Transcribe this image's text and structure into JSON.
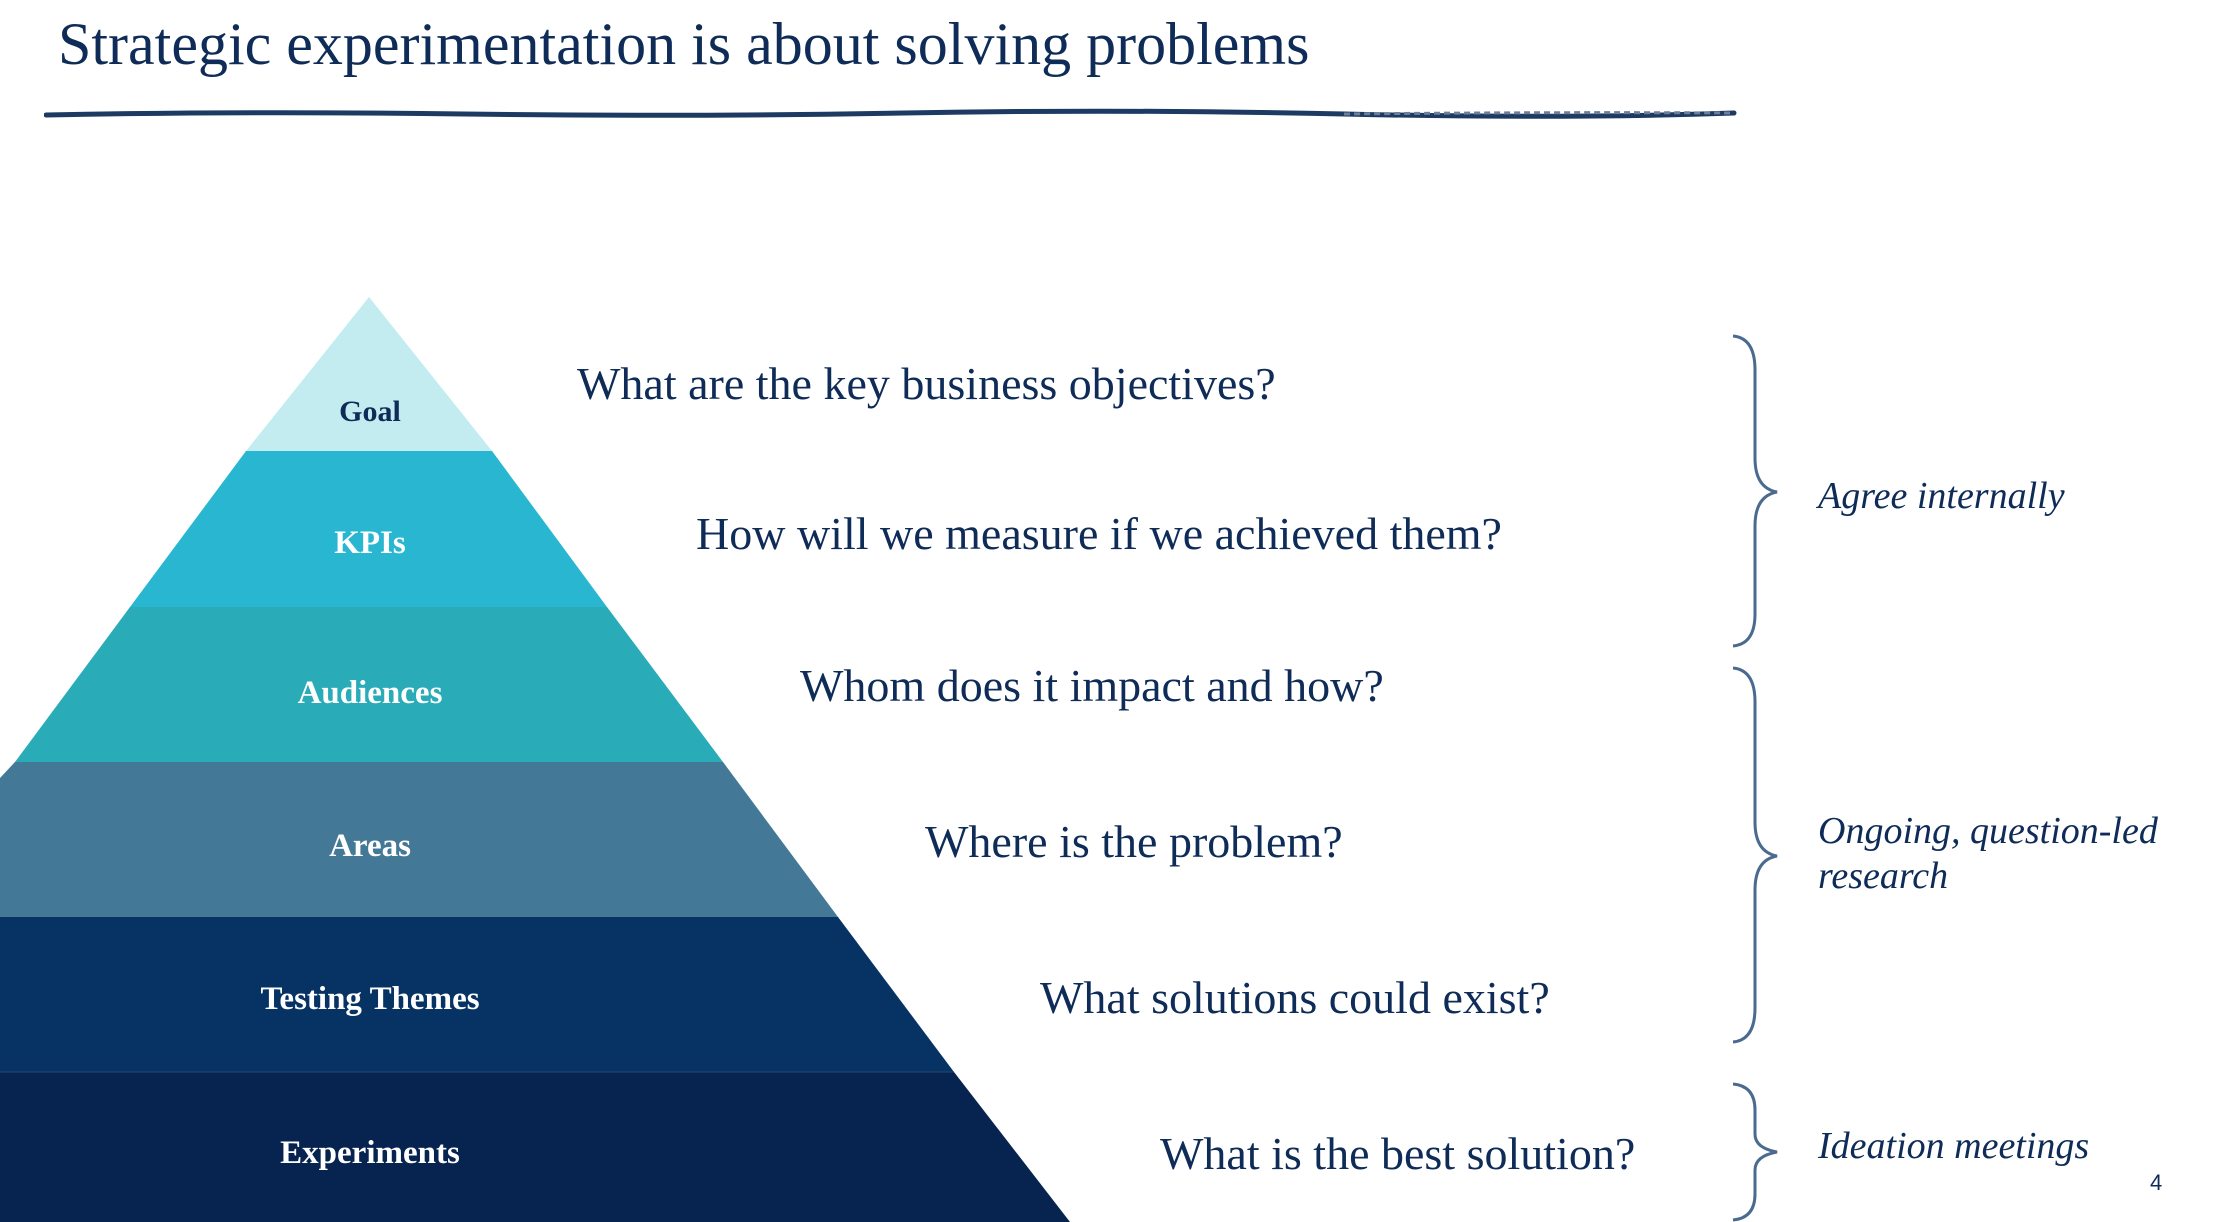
{
  "title": "Strategic experimentation is about solving problems",
  "colors": {
    "title": "#0e2c57",
    "goal": "#c3ecf1",
    "kpis": "#29b6d1",
    "audiences": "#29abb8",
    "areas": "#437997",
    "testing_themes": "#063364",
    "experiments": "#06244f",
    "rule": "#1d3a63"
  },
  "levels": [
    {
      "label": "Goal",
      "question": "What are the key business objectives?"
    },
    {
      "label": "KPIs",
      "question": "How will we measure if we achieved them?"
    },
    {
      "label": "Audiences",
      "question": "Whom does it impact and how?"
    },
    {
      "label": "Areas",
      "question": "Where is the problem?"
    },
    {
      "label": "Testing Themes",
      "question": "What solutions could exist?"
    },
    {
      "label": "Experiments",
      "question": "What is the best solution?"
    }
  ],
  "brackets": [
    {
      "note": "Agree internally"
    },
    {
      "note_line1": "Ongoing, question-led",
      "note_line2": "research"
    },
    {
      "note": "Ideation meetings"
    }
  ],
  "page_number": "4"
}
